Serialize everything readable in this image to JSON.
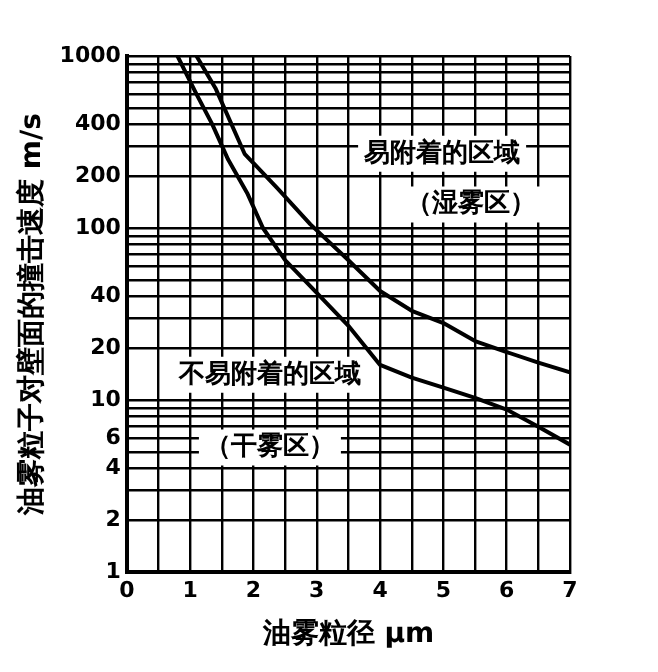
{
  "chart_data": {
    "type": "line",
    "xlabel": "油雾粒径 μm",
    "ylabel": "油雾粒子对壁面的撞击速度 m/s",
    "series": [
      {
        "color": "#000000",
        "x": [
          0.8,
          1.1,
          1.35,
          1.6,
          1.9,
          2.15,
          2.5,
          3.0,
          3.5,
          4.0,
          4.5,
          5.0,
          5.5,
          6.0,
          6.5,
          7.0
        ],
        "values": [
          1000,
          600,
          400,
          250,
          160,
          100,
          65,
          42,
          27,
          16,
          13.5,
          11.8,
          10.3,
          8.8,
          7,
          5.5
        ]
      },
      {
        "color": "#000000",
        "x": [
          1.1,
          1.4,
          1.86,
          2.38,
          2.9,
          3.5,
          4.0,
          4.5,
          5.0,
          5.5,
          6.0,
          6.5,
          7.0
        ],
        "values": [
          1000,
          650,
          270,
          170,
          105,
          65,
          43,
          33,
          28,
          22,
          19,
          16.5,
          14.5
        ]
      }
    ],
    "xlim": [
      0,
      7
    ],
    "xticks": [
      0,
      {
        "value": 0.5,
        "label": null
      },
      1,
      {
        "value": 1.5,
        "label": null
      },
      2,
      {
        "value": 2.5,
        "label": null
      },
      3,
      {
        "value": 3.5,
        "label": null
      },
      4,
      {
        "value": 4.5,
        "label": null
      },
      5,
      {
        "value": 5.5,
        "label": null
      },
      6,
      {
        "value": 6.5,
        "label": null
      },
      7
    ],
    "ylim": [
      1,
      1000
    ],
    "yticks": [
      1,
      2,
      {
        "value": 3,
        "label": null
      },
      4,
      {
        "value": 5,
        "label": null
      },
      6,
      {
        "value": 7,
        "label": null
      },
      {
        "value": 8,
        "label": null
      },
      {
        "value": 9,
        "label": null
      },
      10,
      20,
      {
        "value": 30,
        "label": null
      },
      40,
      {
        "value": 50,
        "label": null
      },
      {
        "value": 60,
        "label": null
      },
      {
        "value": 70,
        "label": null
      },
      {
        "value": 80,
        "label": null
      },
      {
        "value": 90,
        "label": null
      },
      100,
      200,
      {
        "value": 300,
        "label": null
      },
      400,
      {
        "value": 500,
        "label": null
      },
      {
        "value": 600,
        "label": null
      },
      {
        "value": 700,
        "label": null
      },
      {
        "value": 800,
        "label": null
      },
      {
        "value": 900,
        "label": null
      },
      1000
    ],
    "log": "y",
    "grid": true,
    "marker": "none",
    "line_style": "solid",
    "annotations": [
      "易附着的区域",
      "（湿雾区）",
      "不易附着的区域",
      "（干雾区）"
    ]
  }
}
